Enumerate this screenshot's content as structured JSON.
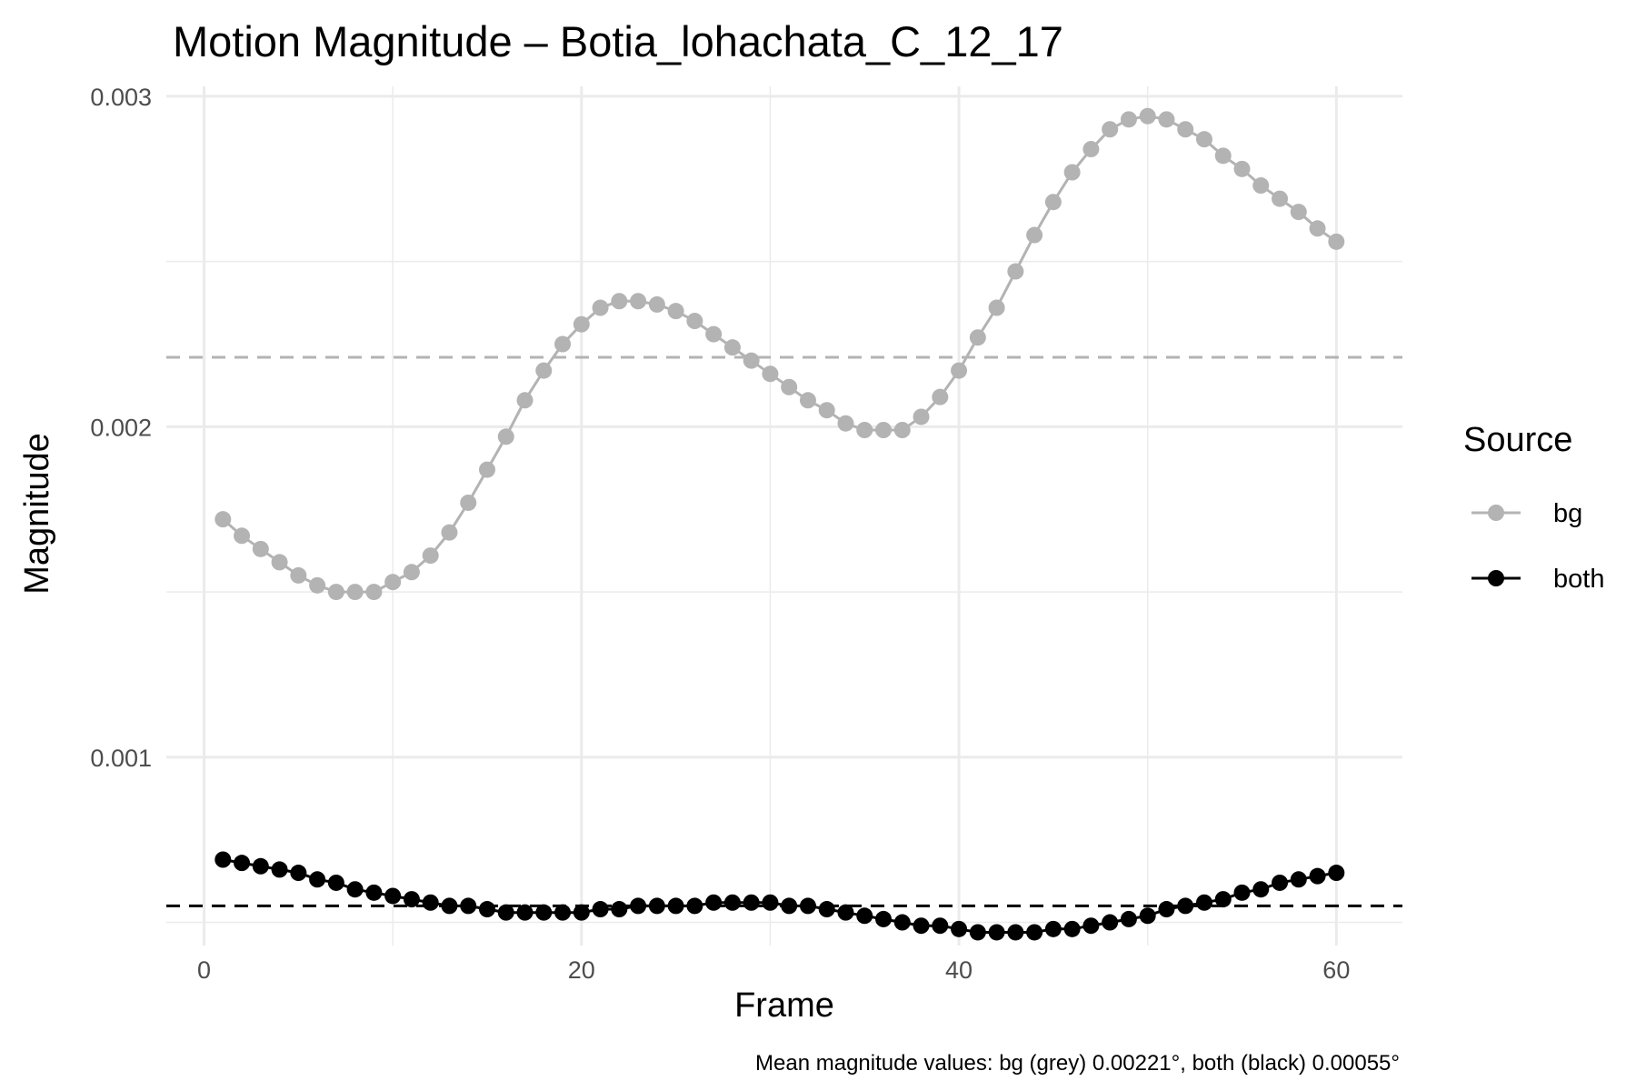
{
  "chart_data": {
    "type": "line",
    "title": "Motion Magnitude – Botia_lohachata_C_12_17",
    "xlabel": "Frame",
    "ylabel": "Magnitude",
    "caption": "Mean magnitude values: bg (grey) 0.00221°, both (black) 0.00055°",
    "xlim": [
      -2,
      63.5
    ],
    "ylim": [
      0.00043,
      0.00303
    ],
    "x_ticks": [
      0,
      20,
      40,
      60
    ],
    "x_tick_labels": [
      "0",
      "20",
      "40",
      "60"
    ],
    "y_ticks": [
      0.001,
      0.002,
      0.003
    ],
    "y_tick_labels": [
      "0.001",
      "0.002",
      "0.003"
    ],
    "x_minor_ticks": [
      10,
      30,
      50
    ],
    "y_minor_ticks": [
      0.0005,
      0.0015,
      0.0025
    ],
    "grid": true,
    "legend": {
      "title": "Source",
      "position": "right"
    },
    "x": [
      1,
      2,
      3,
      4,
      5,
      6,
      7,
      8,
      9,
      10,
      11,
      12,
      13,
      14,
      15,
      16,
      17,
      18,
      19,
      20,
      21,
      22,
      23,
      24,
      25,
      26,
      27,
      28,
      29,
      30,
      31,
      32,
      33,
      34,
      35,
      36,
      37,
      38,
      39,
      40,
      41,
      42,
      43,
      44,
      45,
      46,
      47,
      48,
      49,
      50,
      51,
      52,
      53,
      54,
      55,
      56,
      57,
      58,
      59,
      60
    ],
    "series": [
      {
        "name": "bg",
        "color": "#b3b3b3",
        "mean": 0.00221,
        "values": [
          0.00172,
          0.00167,
          0.00163,
          0.00159,
          0.00155,
          0.00152,
          0.0015,
          0.0015,
          0.0015,
          0.00153,
          0.00156,
          0.00161,
          0.00168,
          0.00177,
          0.00187,
          0.00197,
          0.00208,
          0.00217,
          0.00225,
          0.00231,
          0.00236,
          0.00238,
          0.00238,
          0.00237,
          0.00235,
          0.00232,
          0.00228,
          0.00224,
          0.0022,
          0.00216,
          0.00212,
          0.00208,
          0.00205,
          0.00201,
          0.00199,
          0.00199,
          0.00199,
          0.00203,
          0.00209,
          0.00217,
          0.00227,
          0.00236,
          0.00247,
          0.00258,
          0.00268,
          0.00277,
          0.00284,
          0.0029,
          0.00293,
          0.00294,
          0.00293,
          0.0029,
          0.00287,
          0.00282,
          0.00278,
          0.00273,
          0.00269,
          0.00265,
          0.0026,
          0.00256
        ]
      },
      {
        "name": "both",
        "color": "#000000",
        "mean": 0.00055,
        "values": [
          0.00069,
          0.00068,
          0.00067,
          0.00066,
          0.00065,
          0.00063,
          0.00062,
          0.0006,
          0.00059,
          0.00058,
          0.00057,
          0.00056,
          0.00055,
          0.00055,
          0.00054,
          0.00053,
          0.00053,
          0.00053,
          0.00053,
          0.00053,
          0.00054,
          0.00054,
          0.00055,
          0.00055,
          0.00055,
          0.00055,
          0.00056,
          0.00056,
          0.00056,
          0.00056,
          0.00055,
          0.00055,
          0.00054,
          0.00053,
          0.00052,
          0.00051,
          0.0005,
          0.00049,
          0.00049,
          0.00048,
          0.00047,
          0.00047,
          0.00047,
          0.00047,
          0.00048,
          0.00048,
          0.00049,
          0.0005,
          0.00051,
          0.00052,
          0.00054,
          0.00055,
          0.00056,
          0.00057,
          0.00059,
          0.0006,
          0.00062,
          0.00063,
          0.00064,
          0.00065
        ]
      }
    ]
  }
}
